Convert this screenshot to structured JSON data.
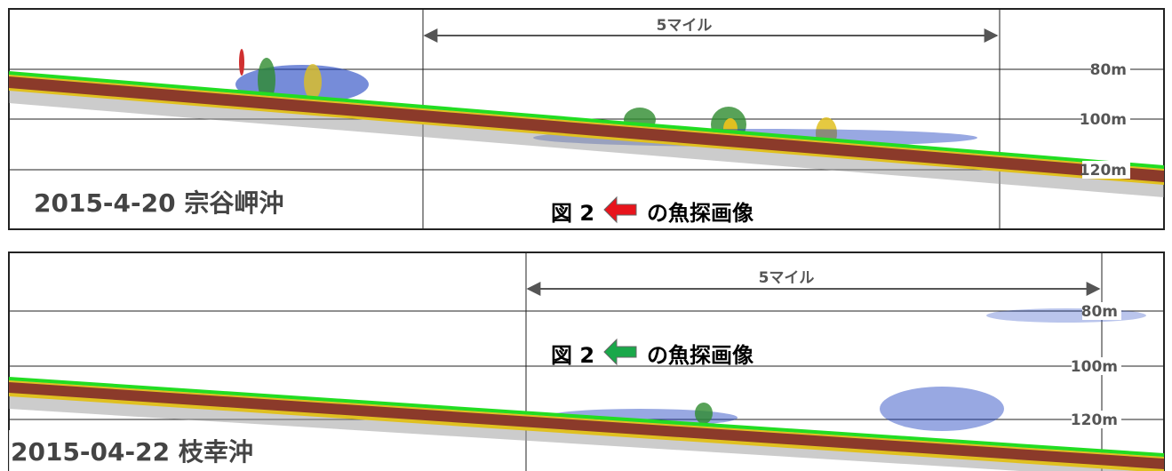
{
  "panels": [
    {
      "date_label": "2015-4-20 宗谷岬沖",
      "distance_label": "5マイル",
      "depth_labels": [
        "80m",
        "100m",
        "120m"
      ],
      "caption": {
        "prefix": "図 2",
        "suffix": "の魚探画像"
      }
    },
    {
      "date_label": "2015-04-22 枝幸沖",
      "distance_label": "5マイル",
      "depth_labels": [
        "80m",
        "100m",
        "120m"
      ],
      "caption": {
        "prefix": "図 2",
        "suffix": "の魚探画像"
      }
    }
  ]
}
